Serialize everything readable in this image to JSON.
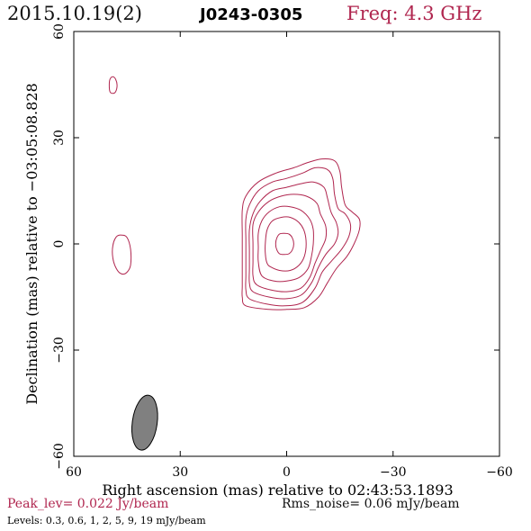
{
  "header": {
    "date": "2015.10.19(2)",
    "source": "J0243-0305",
    "frequency": "Freq: 4.3 GHz"
  },
  "footer": {
    "peak": "Peak_lev=  0.022 Jy/beam",
    "rms": "Rms_noise= 0.06 mJy/beam",
    "levels": "Levels: 0.3, 0.6,    1,    2,    5,    9,   19 mJy/beam"
  },
  "colors": {
    "contour": "#b0264f",
    "beam_fill": "#808080",
    "axis": "#000000"
  },
  "chart_data": {
    "type": "contour",
    "xlabel": "Right ascension (mas) relative to 02:43:53.1893",
    "ylabel": "Declination (mas) relative to −03:05:08.828",
    "xlim": [
      60,
      -60
    ],
    "ylim": [
      -60,
      60
    ],
    "xticks": [
      60,
      30,
      0,
      -30,
      -60
    ],
    "yticks": [
      -60,
      -30,
      0,
      30,
      60
    ],
    "xtick_labels": [
      "60",
      "30",
      "0",
      "−30",
      "−60"
    ],
    "ytick_labels": [
      "−60",
      "−30",
      "0",
      "30",
      "60"
    ],
    "contour_levels_mJy_per_beam": [
      0.3,
      0.6,
      1,
      2,
      5,
      9,
      19
    ],
    "peak_Jy_per_beam": 0.022,
    "rms_noise_mJy_per_beam": 0.06,
    "core_position_mas": [
      0,
      0
    ],
    "contours": [
      {
        "level": 0.3,
        "points": [
          [
            11.5,
            -17.5
          ],
          [
            5,
            -18.5
          ],
          [
            0,
            -18.5
          ],
          [
            -5,
            -18
          ],
          [
            -9,
            -15
          ],
          [
            -11.5,
            -11
          ],
          [
            -14,
            -7
          ],
          [
            -17,
            -3.5
          ],
          [
            -19,
            0
          ],
          [
            -20.5,
            4
          ],
          [
            -20.5,
            7
          ],
          [
            -18.5,
            9
          ],
          [
            -16.5,
            11
          ],
          [
            -15.5,
            16
          ],
          [
            -15,
            20.5
          ],
          [
            -13.5,
            23.5
          ],
          [
            -10,
            24
          ],
          [
            -6,
            23
          ],
          [
            -2,
            21.5
          ],
          [
            3,
            20
          ],
          [
            8,
            17.5
          ],
          [
            11.5,
            13.5
          ],
          [
            12.5,
            9.5
          ],
          [
            12.5,
            2.5
          ],
          [
            12.5,
            -3
          ],
          [
            12.5,
            -8
          ],
          [
            12.5,
            -12
          ],
          [
            12.5,
            -15
          ]
        ]
      },
      {
        "level": 0.6,
        "points": [
          [
            10.5,
            -15.5
          ],
          [
            5.5,
            -17
          ],
          [
            0.5,
            -17.5
          ],
          [
            -4.5,
            -16.5
          ],
          [
            -8,
            -12.5
          ],
          [
            -10,
            -8
          ],
          [
            -12.5,
            -5
          ],
          [
            -15.5,
            -1.5
          ],
          [
            -17.5,
            2
          ],
          [
            -18,
            5.5
          ],
          [
            -16.5,
            8.5
          ],
          [
            -14.5,
            10
          ],
          [
            -13.5,
            14
          ],
          [
            -13,
            18.5
          ],
          [
            -11.5,
            21
          ],
          [
            -8,
            21.5
          ],
          [
            -4.5,
            20
          ],
          [
            0,
            18.5
          ],
          [
            4,
            17.5
          ],
          [
            8,
            15
          ],
          [
            10.5,
            11
          ],
          [
            11.5,
            7
          ],
          [
            11.5,
            1
          ],
          [
            11.5,
            -4
          ],
          [
            11.5,
            -9
          ],
          [
            11.5,
            -13
          ]
        ]
      },
      {
        "level": 1,
        "points": [
          [
            9.5,
            -13.5
          ],
          [
            5,
            -15
          ],
          [
            0.5,
            -15.5
          ],
          [
            -4,
            -14.5
          ],
          [
            -7,
            -11
          ],
          [
            -9,
            -6.5
          ],
          [
            -11,
            -3
          ],
          [
            -13.5,
            0
          ],
          [
            -14.5,
            3
          ],
          [
            -14,
            6
          ],
          [
            -12.5,
            9
          ],
          [
            -11.5,
            13
          ],
          [
            -10.5,
            16
          ],
          [
            -7.5,
            17.5
          ],
          [
            -4,
            17
          ],
          [
            0,
            16
          ],
          [
            4,
            15
          ],
          [
            7.5,
            12
          ],
          [
            9.5,
            8.5
          ],
          [
            10.5,
            4
          ],
          [
            10.5,
            -2
          ],
          [
            10.5,
            -7
          ],
          [
            10.5,
            -11
          ]
        ]
      },
      {
        "level": 2,
        "points": [
          [
            8.5,
            -11.5
          ],
          [
            4.5,
            -13
          ],
          [
            0,
            -13.5
          ],
          [
            -4,
            -12.5
          ],
          [
            -6.5,
            -9.5
          ],
          [
            -8,
            -5.5
          ],
          [
            -9.5,
            -2
          ],
          [
            -11,
            1.5
          ],
          [
            -11,
            5
          ],
          [
            -9.5,
            8.5
          ],
          [
            -8.5,
            11.5
          ],
          [
            -5.5,
            13.5
          ],
          [
            -2,
            14
          ],
          [
            1.5,
            13.5
          ],
          [
            5,
            12
          ],
          [
            8,
            9
          ],
          [
            9.5,
            5.5
          ],
          [
            9.5,
            0
          ],
          [
            9.5,
            -5
          ],
          [
            9.5,
            -9
          ]
        ]
      },
      {
        "level": 5,
        "points": [
          [
            7,
            -9
          ],
          [
            3.5,
            -10.5
          ],
          [
            0,
            -10.5
          ],
          [
            -3.5,
            -9.5
          ],
          [
            -6,
            -7
          ],
          [
            -7,
            -3.5
          ],
          [
            -7.5,
            0
          ],
          [
            -7.5,
            4
          ],
          [
            -6.5,
            7
          ],
          [
            -4,
            9.5
          ],
          [
            -1,
            10.5
          ],
          [
            2,
            10.5
          ],
          [
            5,
            9
          ],
          [
            7,
            6.5
          ],
          [
            8,
            3
          ],
          [
            8,
            -1
          ],
          [
            8,
            -5
          ]
        ]
      },
      {
        "level": 9,
        "points": [
          [
            4.5,
            -6.5
          ],
          [
            2,
            -7.5
          ],
          [
            -1,
            -7.5
          ],
          [
            -3.5,
            -6
          ],
          [
            -5,
            -3.5
          ],
          [
            -5.5,
            0
          ],
          [
            -5,
            3.5
          ],
          [
            -3.5,
            6
          ],
          [
            -1,
            7.5
          ],
          [
            1.5,
            7.5
          ],
          [
            4,
            6.5
          ],
          [
            5.5,
            4
          ],
          [
            6,
            0.5
          ],
          [
            6,
            -3
          ],
          [
            5.5,
            -5.5
          ]
        ]
      },
      {
        "level": 19,
        "points": [
          [
            2,
            -2.8
          ],
          [
            0.8,
            -3
          ],
          [
            -0.6,
            -2.8
          ],
          [
            -1.6,
            -1.7
          ],
          [
            -2,
            0
          ],
          [
            -1.6,
            1.7
          ],
          [
            -0.6,
            2.8
          ],
          [
            0.8,
            3
          ],
          [
            2,
            2.8
          ],
          [
            2.8,
            1.6
          ],
          [
            3.1,
            0
          ],
          [
            2.8,
            -1.6
          ]
        ]
      },
      {
        "level": 0.3,
        "points": [
          [
            46.5,
            -8.5
          ],
          [
            45,
            -8
          ],
          [
            44,
            -6
          ],
          [
            44,
            -1.5
          ],
          [
            45,
            1.8
          ],
          [
            46.5,
            2.5
          ],
          [
            48,
            2
          ],
          [
            49,
            -0.5
          ],
          [
            49,
            -4
          ],
          [
            48,
            -7
          ]
        ]
      },
      {
        "level": 0.3,
        "points": [
          [
            49,
            42.5
          ],
          [
            48.2,
            43
          ],
          [
            47.8,
            44.8
          ],
          [
            48.2,
            46.5
          ],
          [
            49,
            47.2
          ],
          [
            49.8,
            46.5
          ],
          [
            50,
            44.8
          ],
          [
            49.8,
            43
          ]
        ]
      }
    ],
    "beam": {
      "center_mas": [
        40,
        -50.5
      ],
      "semi_axes_mas": [
        3.5,
        7.8
      ],
      "tilt_deg": 8
    }
  }
}
